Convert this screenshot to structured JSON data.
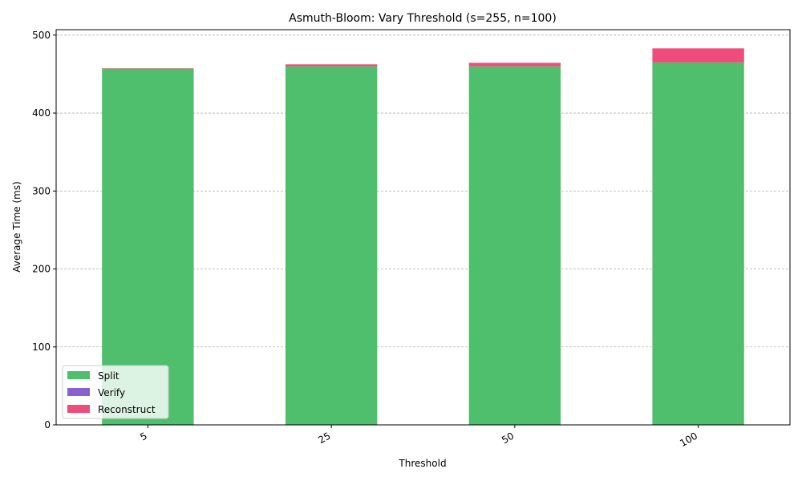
{
  "chart_data": {
    "type": "bar",
    "stacked": true,
    "title": "Asmuth-Bloom: Vary Threshold (s=255, n=100)",
    "xlabel": "Threshold",
    "ylabel": "Average Time (ms)",
    "categories": [
      "5",
      "25",
      "50",
      "100"
    ],
    "ylim": [
      0,
      507
    ],
    "yticks": [
      0,
      100,
      200,
      300,
      400,
      500
    ],
    "grid": "y-dashed",
    "legend_position": "lower-left",
    "series": [
      {
        "name": "Split",
        "color": "#4fbe6d",
        "values": [
          457,
          460,
          460,
          465
        ]
      },
      {
        "name": "Verify",
        "color": "#8a5fcf",
        "values": [
          0,
          0,
          0,
          0
        ]
      },
      {
        "name": "Reconstruct",
        "color": "#ef4b7b",
        "values": [
          0.5,
          2.5,
          4.5,
          18
        ]
      }
    ]
  }
}
